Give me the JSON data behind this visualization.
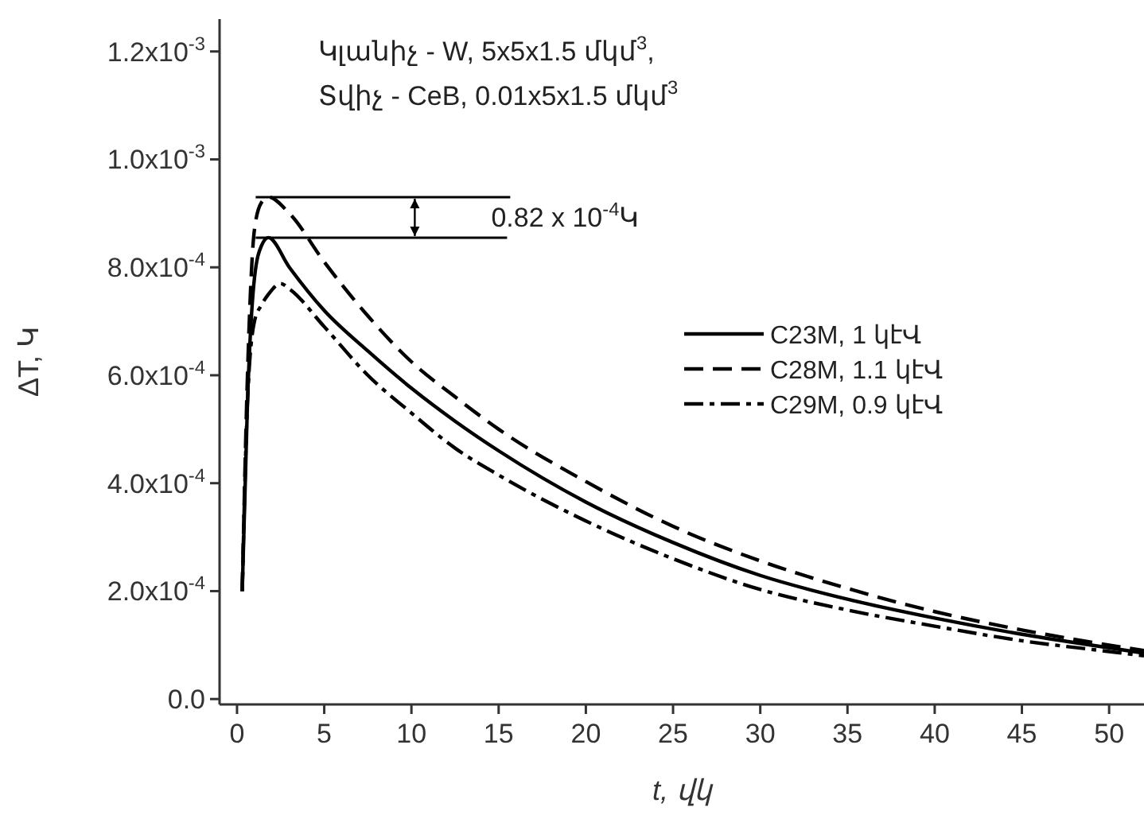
{
  "chart_data": {
    "type": "line",
    "xlabel": "t, վկ",
    "ylabel": "ΔT, Կ",
    "xlim": [
      -1,
      52
    ],
    "ylim": [
      -1e-05,
      0.00126
    ],
    "xticks": [
      0,
      5,
      10,
      15,
      20,
      25,
      30,
      35,
      40,
      45,
      50
    ],
    "yticks": [
      {
        "value": 0,
        "label": "0.0"
      },
      {
        "value": 0.0002,
        "label": "2.0x10$^{-4}$"
      },
      {
        "value": 0.0004,
        "label": "4.0x10$^{-4}$"
      },
      {
        "value": 0.0006,
        "label": "6.0x10$^{-4}$"
      },
      {
        "value": 0.0008,
        "label": "8.0x10$^{-4}$"
      },
      {
        "value": 0.001,
        "label": "1.0x10$^{-3}$"
      },
      {
        "value": 0.0012,
        "label": "1.2x10$^{-3}$"
      }
    ],
    "legend": "right",
    "grid": false,
    "series": [
      {
        "name": "C23M, 1 կէՎ",
        "color": "#000000",
        "line_style": "solid",
        "x": [
          0.3,
          0.6,
          1.0,
          1.4,
          1.8,
          3,
          5,
          7.5,
          10,
          12.5,
          15,
          20,
          25,
          30,
          35,
          40,
          45,
          50,
          52
        ],
        "values": [
          0.0002,
          0.00055,
          0.00078,
          0.00084,
          0.000855,
          0.0008,
          0.00072,
          0.000645,
          0.000576,
          0.000515,
          0.00046,
          0.000365,
          0.00029,
          0.000229,
          0.000185,
          0.00015,
          0.00012,
          9.5e-05,
          8.5e-05
        ]
      },
      {
        "name": "C28M, 1.1 կէՎ",
        "color": "#000000",
        "line_style": "dashed",
        "x": [
          0.3,
          0.6,
          1.0,
          1.4,
          1.8,
          3,
          5,
          7.5,
          10,
          12.5,
          15,
          20,
          25,
          30,
          35,
          40,
          45,
          50,
          52
        ],
        "values": [
          0.0002,
          0.0006,
          0.00087,
          0.00092,
          0.00093,
          0.0009,
          0.00081,
          0.00071,
          0.000625,
          0.00056,
          0.0005,
          0.000403,
          0.00032,
          0.000256,
          0.000205,
          0.000162,
          0.000128,
          0.0001,
          9e-05
        ]
      },
      {
        "name": "C29M, 0.9 կէՎ",
        "color": "#000000",
        "line_style": "dashdot",
        "x": [
          0.3,
          0.6,
          1.0,
          1.4,
          1.8,
          2.5,
          3,
          5,
          7.5,
          10,
          12.5,
          15,
          20,
          25,
          30,
          35,
          40,
          45,
          50,
          52
        ],
        "values": [
          0.0002,
          0.00055,
          0.0007,
          0.00073,
          0.00075,
          0.00077,
          0.00076,
          0.00069,
          0.0006,
          0.00053,
          0.000465,
          0.000415,
          0.00033,
          0.00026,
          0.000203,
          0.000165,
          0.000135,
          0.000108,
          8.8e-05,
          8e-05
        ]
      }
    ],
    "annotations": [
      "Կլանիչ - W, 5x5x1.5 մկմ$^{3}$,",
      "Տվիչ - CeB, 0.01x5x1.5 մկմ$^{3}$",
      {
        "text": "0.82 x 10$^{-4}$Կ",
        "x": 1.8,
        "y": 0.00093
      }
    ]
  }
}
